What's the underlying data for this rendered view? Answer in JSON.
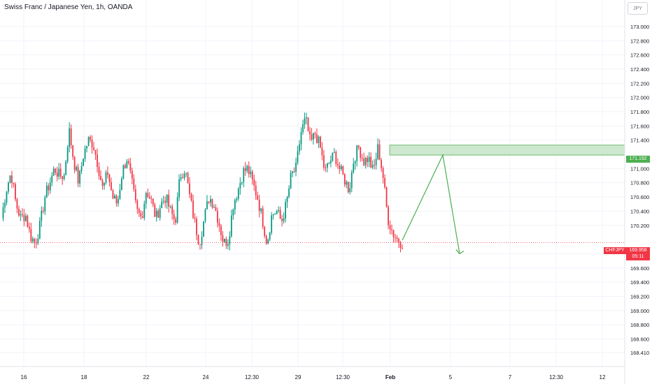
{
  "header": {
    "title": "Swiss Franc / Japanese Yen, 1h, OANDA",
    "currency_button": "JPY"
  },
  "colors": {
    "up": "#089981",
    "down": "#f23645",
    "zone_fill": "#c8e6c9",
    "zone_border": "#4caf50",
    "arrow": "#4caf50",
    "grid": "#f0f3fa",
    "axis_text": "#131722"
  },
  "chart_data": {
    "type": "candlestick",
    "symbol": "CHFJPY",
    "y_ticks": [
      "173.000",
      "172.800",
      "172.600",
      "172.400",
      "172.200",
      "172.000",
      "171.800",
      "171.600",
      "171.400",
      "171.000",
      "170.800",
      "170.600",
      "170.400",
      "170.200",
      "169.800",
      "169.600",
      "169.400",
      "169.200",
      "169.000",
      "168.800",
      "168.600",
      "168.410"
    ],
    "x_ticks": [
      "16",
      "18",
      "22",
      "24",
      "12:30",
      "29",
      "12:30",
      "Feb",
      "5",
      "7",
      "12:30",
      "12"
    ],
    "ylim": [
      168.41,
      173.1
    ],
    "current_price": "169.958",
    "countdown": "05:11",
    "resistance_zone": {
      "low": 171.19,
      "high": 171.33,
      "label": "171.192"
    },
    "projection_path": [
      {
        "time": "Feb",
        "price": 169.99
      },
      {
        "time": "between Feb and 5",
        "price": 171.19
      },
      {
        "time": "5",
        "price": 169.8
      }
    ],
    "price_path": [
      170.3,
      170.7,
      170.95,
      170.5,
      170.3,
      170.35,
      170.05,
      169.95,
      170.2,
      170.6,
      170.8,
      171.0,
      170.9,
      170.9,
      171.55,
      171.1,
      170.8,
      171.2,
      171.4,
      171.35,
      171.05,
      170.7,
      170.95,
      170.6,
      170.5,
      170.95,
      171.15,
      170.8,
      170.4,
      170.3,
      170.7,
      170.55,
      170.3,
      170.5,
      170.6,
      170.4,
      170.25,
      170.9,
      171.0,
      170.6,
      170.25,
      169.95,
      170.3,
      170.6,
      170.5,
      170.25,
      169.95,
      170.0,
      170.5,
      170.7,
      170.95,
      171.0,
      170.8,
      170.6,
      170.3,
      169.95,
      170.35,
      170.4,
      170.25,
      170.5,
      170.9,
      171.0,
      171.5,
      171.7,
      171.35,
      171.5,
      171.3,
      170.95,
      171.1,
      171.2,
      171.0,
      170.85,
      170.7,
      171.15,
      171.3,
      171.1,
      171.15,
      170.95,
      171.3,
      170.9,
      170.3,
      170.1,
      170.0,
      169.95
    ]
  },
  "price_axis_tags": {
    "zone_label": "171.192",
    "symbol": "CHFJPY",
    "price": "169.958",
    "countdown": "05:11"
  }
}
